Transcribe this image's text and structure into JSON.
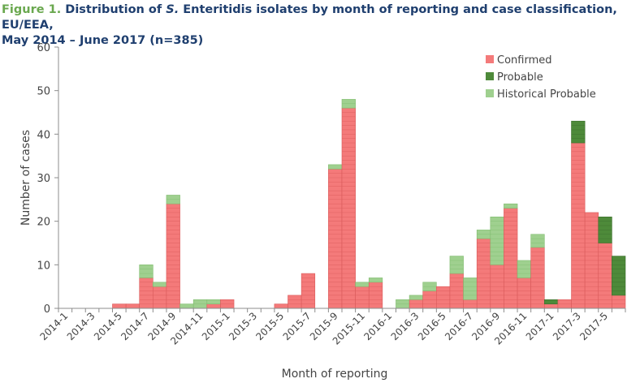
{
  "title": {
    "label": "Figure 1.",
    "pre": "Distribution of",
    "italic": "S.",
    "post": "Enteritidis isolates by month of reporting and case classification, EU/EEA,",
    "line2": "May 2014 – June 2017 (n=385)"
  },
  "chart_data": {
    "type": "bar",
    "stacked": true,
    "xlabel": "Month of reporting",
    "ylabel": "Number of cases",
    "ylim": [
      0,
      60
    ],
    "yticks": [
      0,
      10,
      20,
      30,
      40,
      50,
      60
    ],
    "grid": false,
    "legend_position": "top-right",
    "categories": [
      "2014-1",
      "2014-2",
      "2014-3",
      "2014-4",
      "2014-5",
      "2014-6",
      "2014-7",
      "2014-8",
      "2014-9",
      "2014-10",
      "2014-11",
      "2014-12",
      "2015-1",
      "2015-2",
      "2015-3",
      "2015-4",
      "2015-5",
      "2015-6",
      "2015-7",
      "2015-8",
      "2015-9",
      "2015-10",
      "2015-11",
      "2015-12",
      "2016-1",
      "2016-2",
      "2016-3",
      "2016-4",
      "2016-5",
      "2016-6",
      "2016-7",
      "2016-8",
      "2016-9",
      "2016-10",
      "2016-11",
      "2016-12",
      "2017-1",
      "2017-2",
      "2017-3",
      "2017-4",
      "2017-5",
      "2017-6"
    ],
    "tick_labels": [
      "2014-1",
      "2014-3",
      "2014-5",
      "2014-7",
      "2014-9",
      "2014-11",
      "2015-1",
      "2015-3",
      "2015-5",
      "2015-7",
      "2015-9",
      "2015-11",
      "2016-1",
      "2016-3",
      "2016-5",
      "2016-7",
      "2016-9",
      "2016-11",
      "2017-1",
      "2017-3",
      "2017-5"
    ],
    "series": [
      {
        "name": "Confirmed",
        "color": "#f47a7a",
        "values": [
          0,
          0,
          0,
          0,
          1,
          1,
          7,
          5,
          24,
          0,
          0,
          1,
          2,
          0,
          0,
          0,
          1,
          3,
          8,
          0,
          32,
          46,
          5,
          6,
          0,
          0,
          2,
          4,
          5,
          8,
          2,
          16,
          10,
          23,
          7,
          14,
          1,
          2,
          38,
          22,
          15,
          3
        ]
      },
      {
        "name": "Probable",
        "color": "#4e8a3a",
        "values": [
          0,
          0,
          0,
          0,
          0,
          0,
          0,
          0,
          0,
          0,
          0,
          0,
          0,
          0,
          0,
          0,
          0,
          0,
          0,
          0,
          0,
          0,
          0,
          0,
          0,
          0,
          0,
          0,
          0,
          0,
          0,
          0,
          0,
          0,
          0,
          0,
          1,
          0,
          5,
          0,
          6,
          9
        ]
      },
      {
        "name": "Historical Probable",
        "color": "#9fd08f",
        "values": [
          0,
          0,
          0,
          0,
          0,
          0,
          3,
          1,
          2,
          1,
          2,
          1,
          0,
          0,
          0,
          0,
          0,
          0,
          0,
          0,
          1,
          2,
          1,
          1,
          0,
          2,
          1,
          2,
          0,
          4,
          5,
          2,
          11,
          1,
          4,
          3,
          0,
          0,
          0,
          0,
          0,
          0
        ]
      }
    ]
  }
}
